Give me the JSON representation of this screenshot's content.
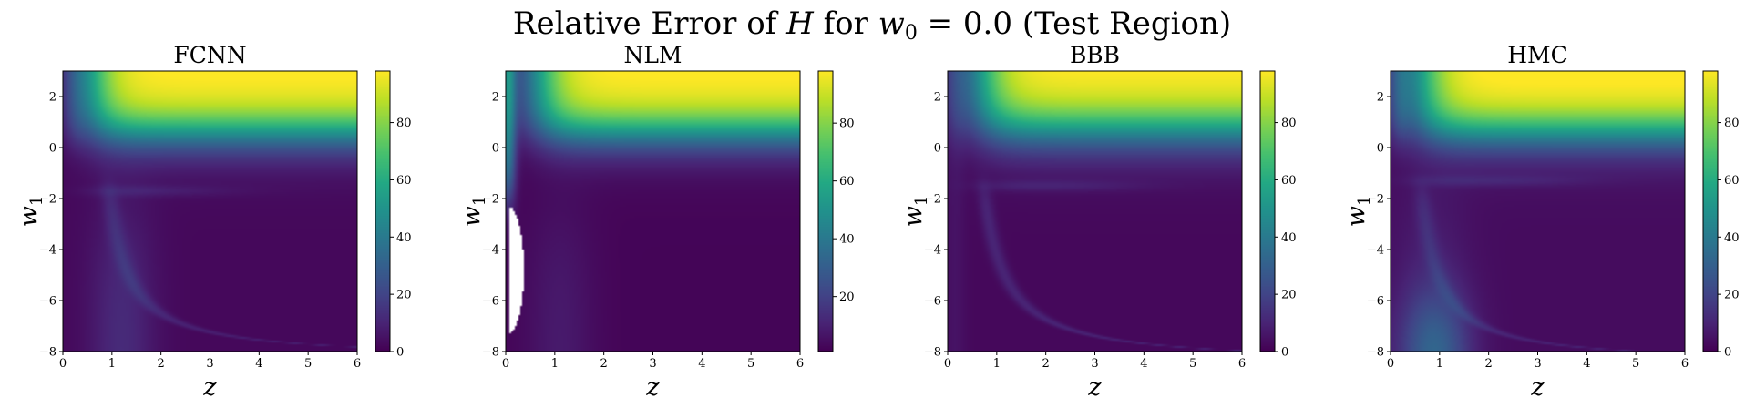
{
  "figure": {
    "title_prefix": "Relative Error of",
    "title_var": "H",
    "title_for": "for",
    "title_param": "w",
    "title_param_sub": "0",
    "title_value": "= 0.0",
    "title_suffix": "(Test Region)"
  },
  "chart_data": [
    {
      "type": "heatmap",
      "title": "FCNN",
      "xlabel": "z",
      "ylabel_base": "w",
      "ylabel_sub": "1",
      "xlim": [
        0,
        6
      ],
      "ylim": [
        -8,
        3
      ],
      "xticks": [
        0,
        1,
        2,
        3,
        4,
        5,
        6
      ],
      "yticks": [
        2,
        0,
        -2,
        -4,
        -6,
        -8
      ],
      "colorbar": {
        "range": [
          0,
          98
        ],
        "ticks": [
          0,
          20,
          40,
          60,
          80
        ],
        "colormap": "viridis"
      },
      "pattern": "fcnn"
    },
    {
      "type": "heatmap",
      "title": "NLM",
      "xlabel": "z",
      "ylabel_base": "w",
      "ylabel_sub": "1",
      "xlim": [
        0,
        6
      ],
      "ylim": [
        -8,
        3
      ],
      "xticks": [
        0,
        1,
        2,
        3,
        4,
        5,
        6
      ],
      "yticks": [
        2,
        0,
        -2,
        -4,
        -6,
        -8
      ],
      "colorbar": {
        "range": [
          1,
          98
        ],
        "ticks": [
          20,
          40,
          60,
          80
        ],
        "colormap": "viridis"
      },
      "pattern": "nlm"
    },
    {
      "type": "heatmap",
      "title": "BBB",
      "xlabel": "z",
      "ylabel_base": "w",
      "ylabel_sub": "1",
      "xlim": [
        0,
        6
      ],
      "ylim": [
        -8,
        3
      ],
      "xticks": [
        0,
        1,
        2,
        3,
        4,
        5,
        6
      ],
      "yticks": [
        2,
        0,
        -2,
        -4,
        -6,
        -8
      ],
      "colorbar": {
        "range": [
          0,
          98
        ],
        "ticks": [
          0,
          20,
          40,
          60,
          80
        ],
        "colormap": "viridis"
      },
      "pattern": "bbb"
    },
    {
      "type": "heatmap",
      "title": "HMC",
      "xlabel": "z",
      "ylabel_base": "w",
      "ylabel_sub": "1",
      "xlim": [
        0,
        6
      ],
      "ylim": [
        -8,
        3
      ],
      "xticks": [
        0,
        1,
        2,
        3,
        4,
        5,
        6
      ],
      "yticks": [
        2,
        0,
        -2,
        -4,
        -6,
        -8
      ],
      "colorbar": {
        "range": [
          0,
          98
        ],
        "ticks": [
          0,
          20,
          40,
          60,
          80
        ],
        "colormap": "viridis"
      },
      "pattern": "hmc"
    }
  ]
}
